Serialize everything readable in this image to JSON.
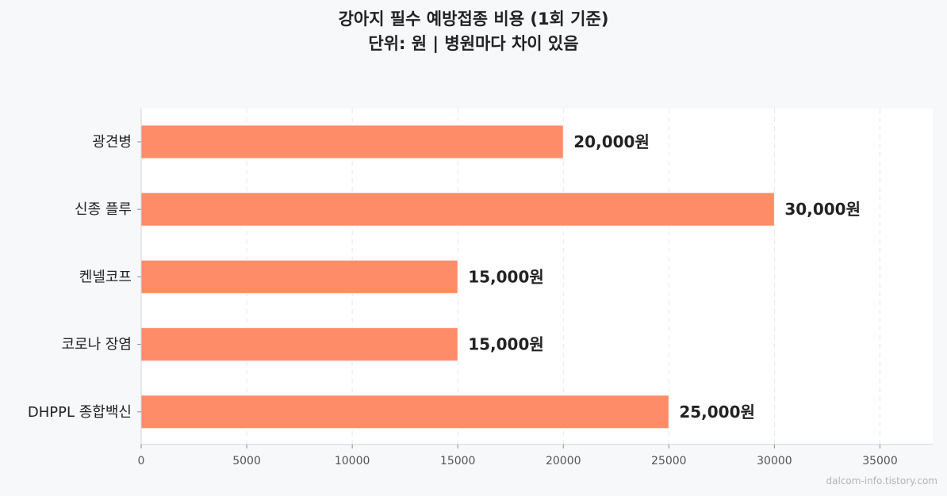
{
  "chart_data": {
    "type": "bar",
    "orientation": "horizontal",
    "title": "강아지 필수 예방접종 비용 (1회 기준)",
    "subtitle": "단위: 원 | 병원마다 차이 있음",
    "categories": [
      "광견병",
      "신종 플루",
      "켄넬코프",
      "코로나 장염",
      "DHPPL 종합백신"
    ],
    "values": [
      20000,
      30000,
      15000,
      15000,
      25000
    ],
    "value_labels": [
      "20,000원",
      "30,000원",
      "15,000원",
      "15,000원",
      "25,000원"
    ],
    "xlim": [
      0,
      37500
    ],
    "xticks": [
      "0",
      "5000",
      "10000",
      "15000",
      "20000",
      "25000",
      "30000",
      "35000"
    ],
    "xtick_values": [
      0,
      5000,
      10000,
      15000,
      20000,
      25000,
      30000,
      35000
    ],
    "grid": "x",
    "bar_color": "#ff8c69",
    "plot_background": "#ffffff",
    "page_background": "#f7f8fa"
  },
  "watermark": "dalcom-info.tistory.com"
}
